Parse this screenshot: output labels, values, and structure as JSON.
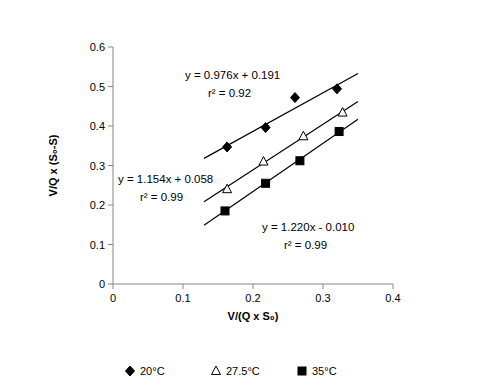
{
  "chart_data": {
    "type": "scatter",
    "x_label": "V/(Q x S₀)",
    "y_label": "V/Q x (S₀-S)",
    "xlim": [
      0,
      0.4
    ],
    "xticks": [
      0,
      0.1,
      0.2,
      0.3,
      0.4
    ],
    "ylim": [
      0,
      0.6
    ],
    "yticks": [
      0,
      0.1,
      0.2,
      0.3,
      0.4,
      0.5,
      0.6
    ],
    "grid": false,
    "legend": "bottom",
    "series": [
      {
        "name": "20°C",
        "color": "#000000",
        "marker": "diamond",
        "x": [
          0.163,
          0.218,
          0.26,
          0.32
        ],
        "values": [
          0.347,
          0.396,
          0.472,
          0.494
        ],
        "trend_x": [
          0.13,
          0.35
        ],
        "trend_y": [
          0.318,
          0.533
        ]
      },
      {
        "name": "27.5°C",
        "color": "#000000",
        "marker": "triangle-open",
        "x": [
          0.163,
          0.215,
          0.272,
          0.328
        ],
        "values": [
          0.24,
          0.31,
          0.374,
          0.434
        ],
        "trend_x": [
          0.13,
          0.35
        ],
        "trend_y": [
          0.208,
          0.462
        ]
      },
      {
        "name": "35°C",
        "color": "#000000",
        "marker": "square",
        "x": [
          0.16,
          0.218,
          0.267,
          0.323
        ],
        "values": [
          0.185,
          0.255,
          0.312,
          0.386
        ],
        "trend_x": [
          0.13,
          0.35
        ],
        "trend_y": [
          0.149,
          0.417
        ]
      }
    ],
    "annotations": [
      "y = 0.976x + 0.191",
      "r² = 0.92",
      "y = 1.154x + 0.058",
      "r² = 0.99",
      "y = 1.220x - 0.010",
      "r² = 0.99"
    ]
  }
}
